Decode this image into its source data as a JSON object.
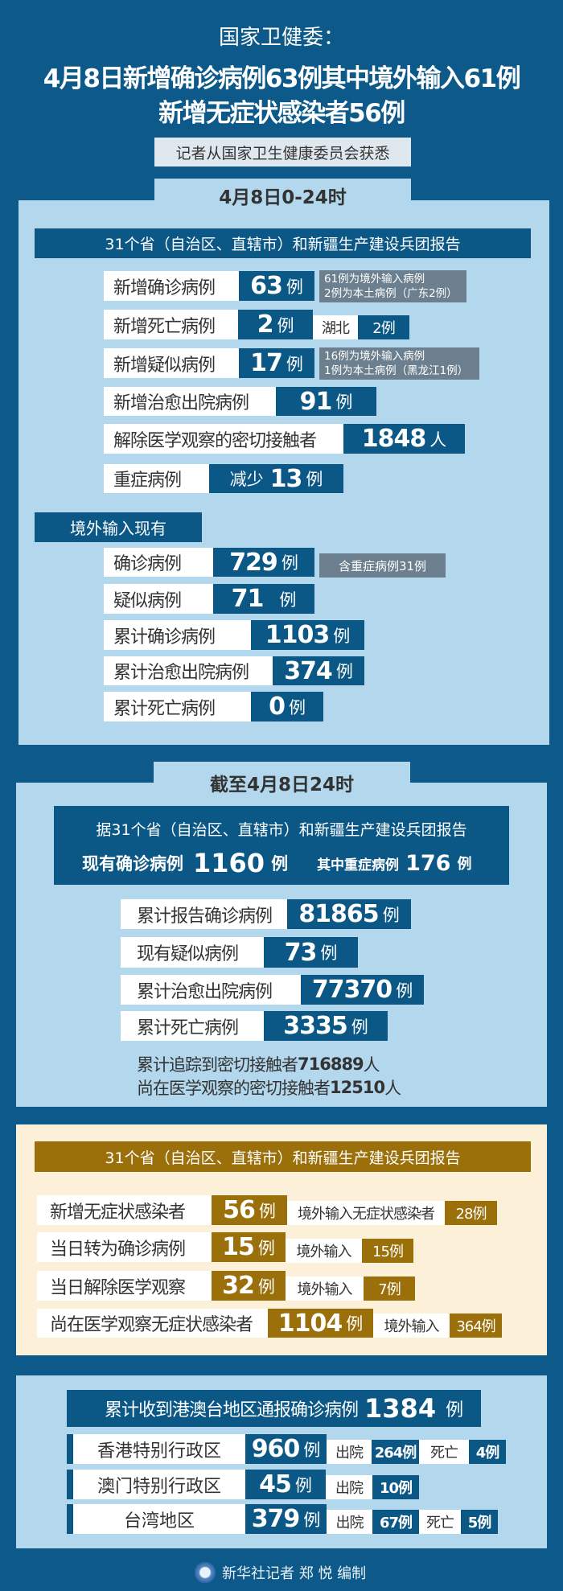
{
  "header": {
    "agency": "国家卫健委：",
    "headline_line1": "4月8日新增确诊病例63例其中境外输入61例",
    "headline_line2": "新增无症状感染者56例",
    "source": "记者从国家卫生健康委员会获悉"
  },
  "daily": {
    "tab": "4月8日0-24时",
    "report_bar": "31个省（自治区、直辖市）和新疆生产建设兵团报告",
    "rows": [
      {
        "label": "新增确诊病例",
        "value": "63",
        "unit": "例",
        "note": [
          "61例为境外输入病例",
          "2例为本土病例（广东2例）"
        ]
      },
      {
        "label": "新增死亡病例",
        "value": "2",
        "unit": "例",
        "extra_label": "湖北",
        "extra_value": "2例"
      },
      {
        "label": "新增疑似病例",
        "value": "17",
        "unit": "例",
        "note": [
          "16例为境外输入病例",
          "1例为本土病例（黑龙江1例）"
        ]
      },
      {
        "label": "新增治愈出院病例",
        "value": "91",
        "unit": "例"
      },
      {
        "label": "解除医学观察的密切接触者",
        "value": "1848",
        "unit": "人"
      },
      {
        "label": "重症病例",
        "prefix": "减少",
        "value": "13",
        "unit": "例"
      }
    ],
    "imported_header": "境外输入现有",
    "imported_rows": [
      {
        "label": "确诊病例",
        "value": "729",
        "unit": "例",
        "note": "含重症病例31例"
      },
      {
        "label": "疑似病例",
        "value": "71",
        "unit": "例"
      },
      {
        "label": "累计确诊病例",
        "value": "1103",
        "unit": "例"
      },
      {
        "label": "累计治愈出院病例",
        "value": "374",
        "unit": "例"
      },
      {
        "label": "累计死亡病例",
        "value": "0",
        "unit": "例"
      }
    ]
  },
  "cumulative": {
    "tab": "截至4月8日24时",
    "report_line": "据31个省（自治区、直辖市）和新疆生产建设兵团报告",
    "current_label": "现有确诊病例",
    "current_value": "1160",
    "current_unit": "例",
    "severe_label": "其中重症病例",
    "severe_value": "176",
    "severe_unit": "例",
    "rows": [
      {
        "label": "累计报告确诊病例",
        "value": "81865",
        "unit": "例"
      },
      {
        "label": "现有疑似病例",
        "value": "73",
        "unit": "例"
      },
      {
        "label": "累计治愈出院病例",
        "value": "77370",
        "unit": "例"
      },
      {
        "label": "累计死亡病例",
        "value": "3335",
        "unit": "例"
      }
    ],
    "contacts_traced_label": "累计追踪到密切接触者",
    "contacts_traced_value": "716889",
    "contacts_traced_unit": "人",
    "contacts_observed_label": "尚在医学观察的密切接触者",
    "contacts_observed_value": "12510",
    "contacts_observed_unit": "人"
  },
  "asymptomatic": {
    "report_bar": "31个省（自治区、直辖市）和新疆生产建设兵团报告",
    "rows": [
      {
        "label": "新增无症状感染者",
        "value": "56",
        "unit": "例",
        "sub_label": "境外输入无症状感染者",
        "sub_value": "28例"
      },
      {
        "label": "当日转为确诊病例",
        "value": "15",
        "unit": "例",
        "sub_label": "境外输入",
        "sub_value": "15例"
      },
      {
        "label": "当日解除医学观察",
        "value": "32",
        "unit": "例",
        "sub_label": "境外输入",
        "sub_value": "7例"
      },
      {
        "label": "尚在医学观察无症状感染者",
        "value": "1104",
        "unit": "例",
        "sub_label": "境外输入",
        "sub_value": "364例"
      }
    ]
  },
  "hmt": {
    "header_label": "累计收到港澳台地区通报确诊病例",
    "header_value": "1384",
    "header_unit": "例",
    "rows": [
      {
        "label": "香港特别行政区",
        "value": "960",
        "unit": "例",
        "discharged_label": "出院",
        "discharged_value": "264例",
        "death_label": "死亡",
        "death_value": "4例"
      },
      {
        "label": "澳门特别行政区",
        "value": "45",
        "unit": "例",
        "discharged_label": "出院",
        "discharged_value": "10例"
      },
      {
        "label": "台湾地区",
        "value": "379",
        "unit": "例",
        "discharged_label": "出院",
        "discharged_value": "67例",
        "death_label": "死亡",
        "death_value": "5例"
      }
    ]
  },
  "footer": {
    "credit": "新华社记者 郑 悦 编制",
    "logo_icon": "xinhua-logo-icon"
  },
  "colors": {
    "background": "#0d5a8a",
    "panel": "#b3d7ec",
    "box_blue": "#0b5886",
    "note_gray": "#6b7f8e",
    "gold": "#9b6f0a",
    "cream": "#fdf0d9"
  }
}
